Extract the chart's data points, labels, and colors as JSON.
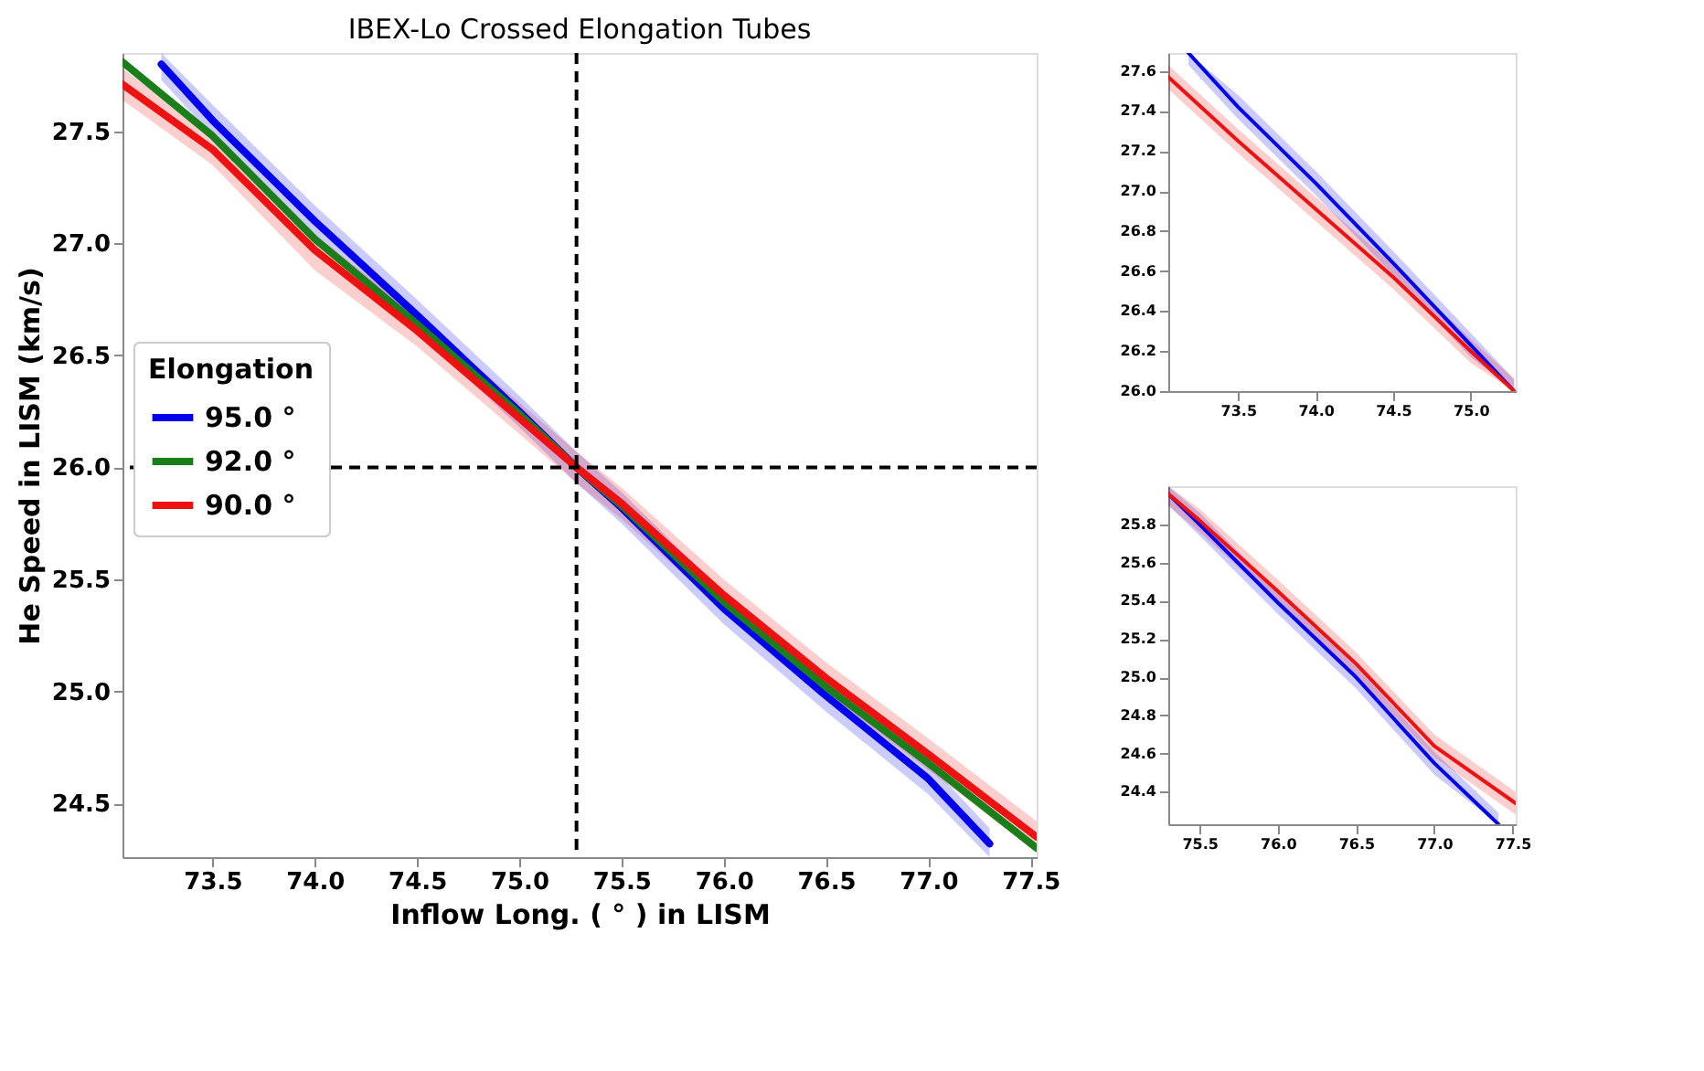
{
  "chart_data": [
    {
      "type": "line",
      "title": "IBEX-Lo Crossed Elongation Tubes",
      "xlabel": "Inflow Long. ( ° ) in LISM",
      "ylabel": "He Speed in LISM (km/s)",
      "legend_title": "Elongation",
      "legend": "left",
      "grid": false,
      "line_style": "solid",
      "marker": "none",
      "xlim": [
        73.06,
        77.53
      ],
      "ylim": [
        24.26,
        27.85
      ],
      "xticks": [
        73.5,
        {
          "value": 74,
          "label": "74.0"
        },
        74.5,
        {
          "value": 75,
          "label": "75.0"
        },
        75.5,
        {
          "value": 76,
          "label": "76.0"
        },
        76.5,
        {
          "value": 77,
          "label": "77.0"
        },
        77.5
      ],
      "yticks": [
        24.5,
        {
          "value": 25,
          "label": "25.0"
        },
        25.5,
        {
          "value": 26,
          "label": "26.0"
        },
        26.5,
        {
          "value": 27,
          "label": "27.0"
        },
        27.5
      ],
      "ref_lines": [
        {
          "axis": "x",
          "value": 75.28,
          "color": "#000000",
          "line_style": "dashed"
        },
        {
          "axis": "y",
          "value": 26.0,
          "color": "#000000",
          "line_style": "dashed"
        }
      ],
      "series": [
        {
          "name": "95.0 °",
          "color": "#0000ee",
          "x": [
            73.25,
            73.5,
            74.0,
            74.5,
            75.0,
            75.28,
            75.5,
            76.0,
            76.5,
            77.0,
            77.3
          ],
          "values": [
            27.8,
            27.55,
            27.1,
            26.68,
            26.25,
            26.0,
            25.82,
            25.37,
            24.98,
            24.61,
            24.32
          ],
          "lower": [
            27.73,
            27.48,
            27.03,
            26.61,
            26.18,
            25.93,
            25.75,
            25.3,
            24.91,
            24.54,
            24.26
          ],
          "upper": [
            27.85,
            27.62,
            27.17,
            26.75,
            26.32,
            26.07,
            25.89,
            25.44,
            25.05,
            24.68,
            24.39
          ]
        },
        {
          "name": "92.0 °",
          "color": "#1a7f1a",
          "x": [
            73.06,
            73.5,
            74.0,
            74.5,
            75.0,
            75.28,
            75.5,
            76.0,
            76.5,
            77.0,
            77.53
          ],
          "values": [
            27.81,
            27.48,
            27.02,
            26.64,
            26.24,
            26.0,
            25.83,
            25.4,
            25.02,
            24.68,
            24.3
          ]
        },
        {
          "name": "90.0 °",
          "color": "#ee1111",
          "x": [
            73.06,
            73.5,
            74.0,
            74.5,
            75.0,
            75.28,
            75.5,
            76.0,
            76.5,
            77.0,
            77.53
          ],
          "values": [
            27.71,
            27.42,
            26.97,
            26.61,
            26.22,
            26.0,
            25.84,
            25.43,
            25.06,
            24.72,
            24.35
          ],
          "lower": [
            27.64,
            27.35,
            26.88,
            26.54,
            26.15,
            25.93,
            25.77,
            25.36,
            24.99,
            24.65,
            24.28
          ],
          "upper": [
            27.78,
            27.49,
            27.04,
            26.68,
            26.29,
            26.07,
            25.91,
            25.5,
            25.13,
            24.79,
            24.42
          ]
        }
      ]
    },
    {
      "type": "line",
      "grid": false,
      "line_style": "solid",
      "marker": "none",
      "xlim": [
        73.05,
        75.29
      ],
      "ylim": [
        26.0,
        27.69
      ],
      "xticks": [
        73.5,
        {
          "value": 74,
          "label": "74.0"
        },
        74.5,
        {
          "value": 75,
          "label": "75.0"
        }
      ],
      "yticks": [
        {
          "value": 26,
          "label": "26.0"
        },
        26.2,
        26.4,
        26.6,
        26.8,
        {
          "value": 27,
          "label": "27.0"
        },
        27.2,
        27.4,
        27.6
      ],
      "series": [
        {
          "color": "#0000ee",
          "x": [
            73.18,
            73.5,
            74.0,
            74.5,
            75.0,
            75.28
          ],
          "values": [
            27.69,
            27.42,
            27.04,
            26.64,
            26.23,
            26.0
          ],
          "lower": [
            27.63,
            27.36,
            26.98,
            26.58,
            26.17,
            26.0
          ],
          "upper": [
            27.69,
            27.48,
            27.1,
            26.7,
            26.29,
            26.06
          ]
        },
        {
          "color": "#ee1111",
          "x": [
            73.05,
            73.5,
            74.0,
            74.5,
            75.0,
            75.28
          ],
          "values": [
            27.57,
            27.25,
            26.91,
            26.57,
            26.2,
            26.0
          ],
          "lower": [
            27.51,
            27.19,
            26.85,
            26.51,
            26.14,
            26.0
          ],
          "upper": [
            27.63,
            27.31,
            26.97,
            26.63,
            26.26,
            26.06
          ]
        }
      ]
    },
    {
      "type": "line",
      "grid": false,
      "line_style": "solid",
      "marker": "none",
      "xlim": [
        75.3,
        77.52
      ],
      "ylim": [
        24.23,
        26.0
      ],
      "xticks": [
        75.5,
        {
          "value": 76,
          "label": "76.0"
        },
        76.5,
        {
          "value": 77,
          "label": "77.0"
        },
        77.5
      ],
      "yticks": [
        24.4,
        24.6,
        24.8,
        {
          "value": 25,
          "label": "25.0"
        },
        25.2,
        25.4,
        25.6,
        25.8
      ],
      "series": [
        {
          "color": "#0000ee",
          "x": [
            75.3,
            75.5,
            76.0,
            76.5,
            77.0,
            77.41
          ],
          "values": [
            25.96,
            25.8,
            25.39,
            25.0,
            24.55,
            24.23
          ],
          "lower": [
            25.9,
            25.74,
            25.33,
            24.94,
            24.49,
            24.23
          ],
          "upper": [
            26.0,
            25.86,
            25.45,
            25.06,
            24.61,
            24.29
          ]
        },
        {
          "color": "#ee1111",
          "x": [
            75.3,
            75.5,
            76.0,
            76.5,
            77.0,
            77.52
          ],
          "values": [
            25.96,
            25.82,
            25.45,
            25.07,
            24.64,
            24.34
          ],
          "lower": [
            25.9,
            25.76,
            25.39,
            25.01,
            24.58,
            24.28
          ],
          "upper": [
            26.0,
            25.88,
            25.51,
            25.13,
            24.7,
            24.4
          ]
        }
      ]
    }
  ]
}
